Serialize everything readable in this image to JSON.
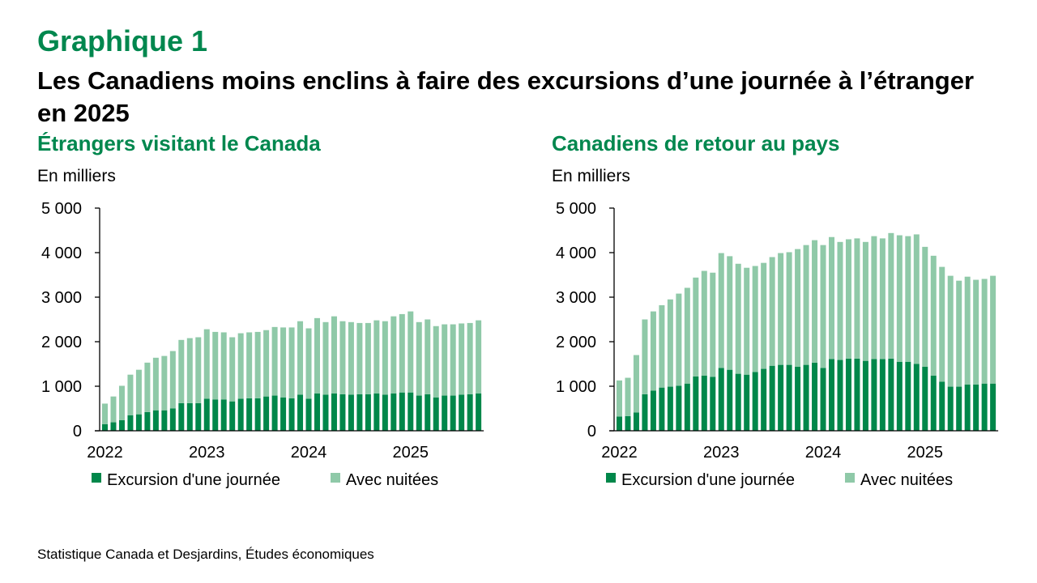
{
  "header": {
    "kicker": "Graphique 1",
    "title": "Les Canadiens moins enclins à faire des excursions d’une journée à l’étranger en 2025"
  },
  "source": "Statistique Canada et Desjardins, Études économiques",
  "colors": {
    "title": "#00874e",
    "day_trip": "#00874a",
    "overnight": "#8fc9a8"
  },
  "chart_data": [
    {
      "type": "bar",
      "stacked": true,
      "title": "Étrangers visitant le Canada",
      "ylabel": "En milliers",
      "ylim": [
        0,
        5000
      ],
      "yticks": [
        "0",
        "1 000",
        "2 000",
        "3 000",
        "4 000",
        "5 000"
      ],
      "x_start": "2022-01",
      "x_end": "2025-09",
      "xticks": [
        "2022",
        "2023",
        "2024",
        "2025"
      ],
      "legend": "bottom",
      "grid": false,
      "series": [
        {
          "name": "Excursion d'une journée",
          "values": [
            150,
            190,
            240,
            350,
            370,
            420,
            460,
            460,
            500,
            620,
            620,
            620,
            720,
            700,
            700,
            660,
            720,
            730,
            730,
            770,
            790,
            750,
            730,
            810,
            720,
            840,
            810,
            840,
            820,
            810,
            820,
            820,
            840,
            810,
            840,
            860,
            860,
            790,
            820,
            750,
            790,
            790,
            810,
            820,
            840
          ]
        },
        {
          "name": "Avec nuitées",
          "values": [
            460,
            580,
            770,
            910,
            1000,
            1110,
            1180,
            1220,
            1290,
            1420,
            1460,
            1480,
            1560,
            1520,
            1510,
            1440,
            1470,
            1480,
            1490,
            1490,
            1540,
            1570,
            1590,
            1650,
            1580,
            1690,
            1630,
            1730,
            1640,
            1630,
            1600,
            1600,
            1640,
            1650,
            1730,
            1760,
            1820,
            1650,
            1680,
            1600,
            1600,
            1600,
            1600,
            1600,
            1640
          ]
        }
      ]
    },
    {
      "type": "bar",
      "stacked": true,
      "title": "Canadiens de retour au pays",
      "ylabel": "En milliers",
      "ylim": [
        0,
        5000
      ],
      "yticks": [
        "0",
        "1 000",
        "2 000",
        "3 000",
        "4 000",
        "5 000"
      ],
      "x_start": "2022-01",
      "x_end": "2025-09",
      "xticks": [
        "2022",
        "2023",
        "2024",
        "2025"
      ],
      "legend": "bottom",
      "grid": false,
      "series": [
        {
          "name": "Excursion d'une journée",
          "values": [
            320,
            330,
            410,
            820,
            900,
            970,
            990,
            1010,
            1060,
            1220,
            1240,
            1210,
            1410,
            1370,
            1280,
            1260,
            1320,
            1390,
            1460,
            1480,
            1480,
            1440,
            1480,
            1530,
            1410,
            1610,
            1590,
            1620,
            1620,
            1570,
            1610,
            1610,
            1620,
            1550,
            1550,
            1500,
            1440,
            1240,
            1100,
            990,
            990,
            1040,
            1040,
            1060,
            1060
          ]
        },
        {
          "name": "Avec nuitées",
          "values": [
            810,
            860,
            1290,
            1680,
            1780,
            1850,
            1960,
            2070,
            2150,
            2220,
            2350,
            2340,
            2580,
            2550,
            2470,
            2400,
            2380,
            2380,
            2440,
            2510,
            2530,
            2640,
            2690,
            2750,
            2760,
            2740,
            2650,
            2680,
            2700,
            2670,
            2760,
            2710,
            2820,
            2840,
            2820,
            2910,
            2690,
            2690,
            2580,
            2490,
            2380,
            2420,
            2350,
            2350,
            2420
          ]
        }
      ]
    }
  ]
}
